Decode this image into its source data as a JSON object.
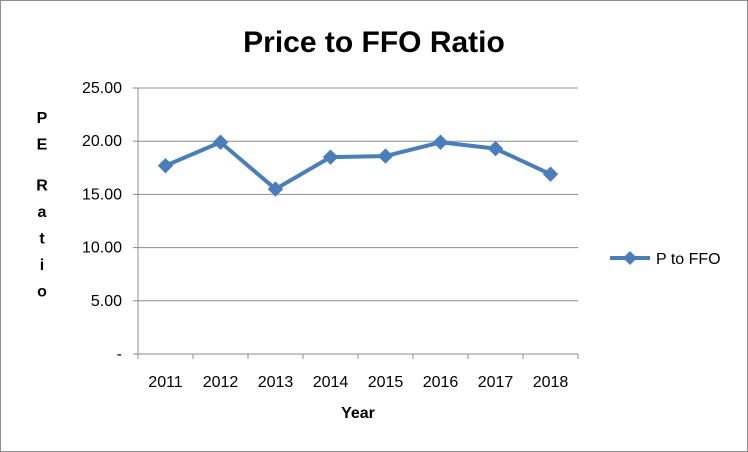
{
  "chart_data": {
    "type": "line",
    "title": "Price to FFO Ratio",
    "xlabel": "Year",
    "ylabel": "PE Ratio",
    "categories": [
      "2011",
      "2012",
      "2013",
      "2014",
      "2015",
      "2016",
      "2017",
      "2018"
    ],
    "series": [
      {
        "name": "P to FFO",
        "values": [
          17.7,
          19.9,
          15.5,
          18.5,
          18.6,
          19.9,
          19.3,
          16.9
        ],
        "color": "#4a7ebb",
        "marker": "diamond"
      }
    ],
    "ylim": [
      0,
      25
    ],
    "yticks": [
      "-",
      "5.00",
      "10.00",
      "15.00",
      "20.00",
      "25.00"
    ],
    "grid": true,
    "legend": "right"
  }
}
